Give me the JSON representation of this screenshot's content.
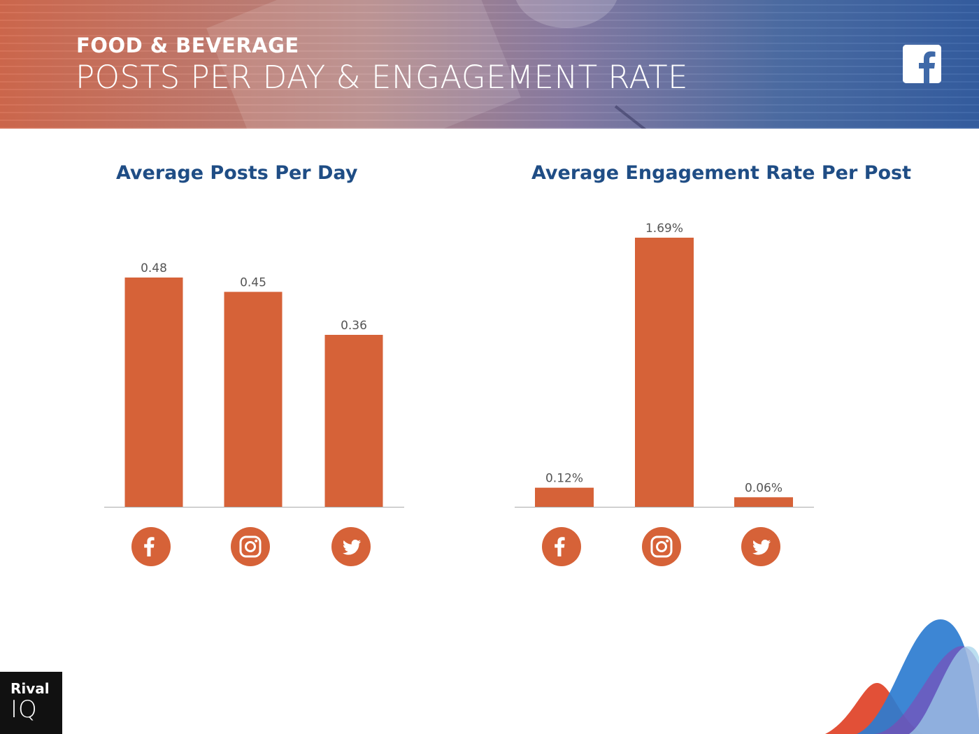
{
  "header": {
    "kicker": "FOOD & BEVERAGE",
    "title": "POSTS PER DAY & ENGAGEMENT RATE",
    "network_icon": "facebook-icon"
  },
  "colors": {
    "bar": "#d66238",
    "title": "#1f4d85",
    "label": "#555555",
    "axis": "#aaaaaa"
  },
  "chart_data": [
    {
      "type": "bar",
      "title": "Average Posts Per Day",
      "categories": [
        "facebook",
        "instagram",
        "twitter"
      ],
      "category_icons": [
        "facebook-icon",
        "instagram-icon",
        "twitter-icon"
      ],
      "values": [
        0.48,
        0.45,
        0.36
      ],
      "value_labels": [
        "0.48",
        "0.45",
        "0.36"
      ],
      "xlabel": "",
      "ylabel": "",
      "ylim": [
        0,
        0.48
      ],
      "grid": false
    },
    {
      "type": "bar",
      "title": "Average Engagement Rate Per Post",
      "categories": [
        "facebook",
        "instagram",
        "twitter"
      ],
      "category_icons": [
        "facebook-icon",
        "instagram-icon",
        "twitter-icon"
      ],
      "values": [
        0.12,
        1.69,
        0.06
      ],
      "value_labels": [
        "0.12%",
        "1.69%",
        "0.06%"
      ],
      "xlabel": "",
      "ylabel": "",
      "ylim": [
        0,
        1.69
      ],
      "grid": false
    }
  ],
  "logo": {
    "line1": "Rival",
    "line2": "IQ"
  }
}
